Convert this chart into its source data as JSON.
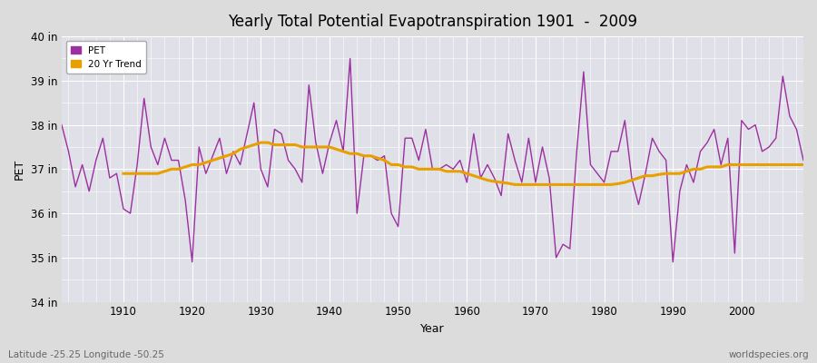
{
  "title": "Yearly Total Potential Evapotranspiration 1901  -  2009",
  "xlabel": "Year",
  "ylabel": "PET",
  "subtitle": "Latitude -25.25 Longitude -50.25",
  "watermark": "worldspecies.org",
  "pet_color": "#9B30A0",
  "trend_color": "#E8A000",
  "bg_color": "#DCDCDC",
  "plot_bg_color": "#E0E0E8",
  "grid_color": "#FFFFFF",
  "ylim": [
    34,
    40
  ],
  "yticks": [
    34,
    35,
    36,
    37,
    38,
    39,
    40
  ],
  "ytick_labels": [
    "34 in",
    "35 in",
    "36 in",
    "37 in",
    "38 in",
    "39 in",
    "40 in"
  ],
  "years": [
    1901,
    1902,
    1903,
    1904,
    1905,
    1906,
    1907,
    1908,
    1909,
    1910,
    1911,
    1912,
    1913,
    1914,
    1915,
    1916,
    1917,
    1918,
    1919,
    1920,
    1921,
    1922,
    1923,
    1924,
    1925,
    1926,
    1927,
    1928,
    1929,
    1930,
    1931,
    1932,
    1933,
    1934,
    1935,
    1936,
    1937,
    1938,
    1939,
    1940,
    1941,
    1942,
    1943,
    1944,
    1945,
    1946,
    1947,
    1948,
    1949,
    1950,
    1951,
    1952,
    1953,
    1954,
    1955,
    1956,
    1957,
    1958,
    1959,
    1960,
    1961,
    1962,
    1963,
    1964,
    1965,
    1966,
    1967,
    1968,
    1969,
    1970,
    1971,
    1972,
    1973,
    1974,
    1975,
    1976,
    1977,
    1978,
    1979,
    1980,
    1981,
    1982,
    1983,
    1984,
    1985,
    1986,
    1987,
    1988,
    1989,
    1990,
    1991,
    1992,
    1993,
    1994,
    1995,
    1996,
    1997,
    1998,
    1999,
    2000,
    2001,
    2002,
    2003,
    2004,
    2005,
    2006,
    2007,
    2008,
    2009
  ],
  "pet_values": [
    38.0,
    37.4,
    36.6,
    37.1,
    36.5,
    37.2,
    37.7,
    36.8,
    36.9,
    36.1,
    36.0,
    37.1,
    38.6,
    37.5,
    37.1,
    37.7,
    37.2,
    37.2,
    36.3,
    34.9,
    37.5,
    36.9,
    37.3,
    37.7,
    36.9,
    37.4,
    37.1,
    37.8,
    38.5,
    37.0,
    36.6,
    37.9,
    37.8,
    37.2,
    37.0,
    36.7,
    38.9,
    37.6,
    36.9,
    37.6,
    38.1,
    37.4,
    39.5,
    36.0,
    37.3,
    37.3,
    37.2,
    37.3,
    36.0,
    35.7,
    37.7,
    37.7,
    37.2,
    37.9,
    37.0,
    37.0,
    37.1,
    37.0,
    37.2,
    36.7,
    37.8,
    36.8,
    37.1,
    36.8,
    36.4,
    37.8,
    37.2,
    36.7,
    37.7,
    36.7,
    37.5,
    36.8,
    35.0,
    35.3,
    35.2,
    37.4,
    39.2,
    37.1,
    36.9,
    36.7,
    37.4,
    37.4,
    38.1,
    36.8,
    36.2,
    36.9,
    37.7,
    37.4,
    37.2,
    34.9,
    36.5,
    37.1,
    36.7,
    37.4,
    37.6,
    37.9,
    37.1,
    37.7,
    35.1,
    38.1,
    37.9,
    38.0,
    37.4,
    37.5,
    37.7,
    39.1,
    38.2,
    37.9,
    37.2
  ],
  "trend_years": [
    1901,
    1902,
    1903,
    1904,
    1905,
    1906,
    1907,
    1908,
    1909,
    1910,
    1911,
    1912,
    1913,
    1914,
    1915,
    1916,
    1917,
    1918,
    1919,
    1920,
    1921,
    1922,
    1923,
    1924,
    1925,
    1926,
    1927,
    1928,
    1929,
    1930,
    1931,
    1932,
    1933,
    1934,
    1935,
    1936,
    1937,
    1938,
    1939,
    1940,
    1941,
    1942,
    1943,
    1944,
    1945,
    1946,
    1947,
    1948,
    1949,
    1950,
    1951,
    1952,
    1953,
    1954,
    1955,
    1956,
    1957,
    1958,
    1959,
    1960,
    1961,
    1962,
    1963,
    1964,
    1965,
    1966,
    1967,
    1968,
    1969,
    1970,
    1971,
    1972,
    1973,
    1974,
    1975,
    1976,
    1977,
    1978,
    1979,
    1980,
    1981,
    1982,
    1983,
    1984,
    1985,
    1986,
    1987,
    1988,
    1989,
    1990,
    1991,
    1992,
    1993,
    1994,
    1995,
    1996,
    1997,
    1998,
    1999,
    2000,
    2001,
    2002,
    2003,
    2004,
    2005,
    2006,
    2007,
    2008,
    2009
  ],
  "trend_values": [
    null,
    null,
    null,
    null,
    null,
    null,
    null,
    null,
    null,
    36.9,
    36.9,
    36.9,
    36.9,
    36.9,
    36.9,
    36.95,
    37.0,
    37.0,
    37.05,
    37.1,
    37.1,
    37.15,
    37.2,
    37.25,
    37.3,
    37.35,
    37.45,
    37.5,
    37.55,
    37.6,
    37.6,
    37.55,
    37.55,
    37.55,
    37.55,
    37.5,
    37.5,
    37.5,
    37.5,
    37.5,
    37.45,
    37.4,
    37.35,
    37.35,
    37.3,
    37.3,
    37.25,
    37.2,
    37.1,
    37.1,
    37.05,
    37.05,
    37.0,
    37.0,
    37.0,
    37.0,
    36.95,
    36.95,
    36.95,
    36.9,
    36.85,
    36.8,
    36.75,
    36.72,
    36.7,
    36.68,
    36.65,
    36.65,
    36.65,
    36.65,
    36.65,
    36.65,
    36.65,
    36.65,
    36.65,
    36.65,
    36.65,
    36.65,
    36.65,
    36.65,
    36.65,
    36.67,
    36.7,
    36.75,
    36.8,
    36.85,
    36.85,
    36.88,
    36.9,
    36.9,
    36.9,
    36.95,
    37.0,
    37.0,
    37.05,
    37.05,
    37.05,
    37.1,
    37.1,
    37.1,
    37.1,
    37.1,
    37.1,
    37.1,
    37.1,
    37.1,
    37.1,
    37.1,
    37.1
  ]
}
